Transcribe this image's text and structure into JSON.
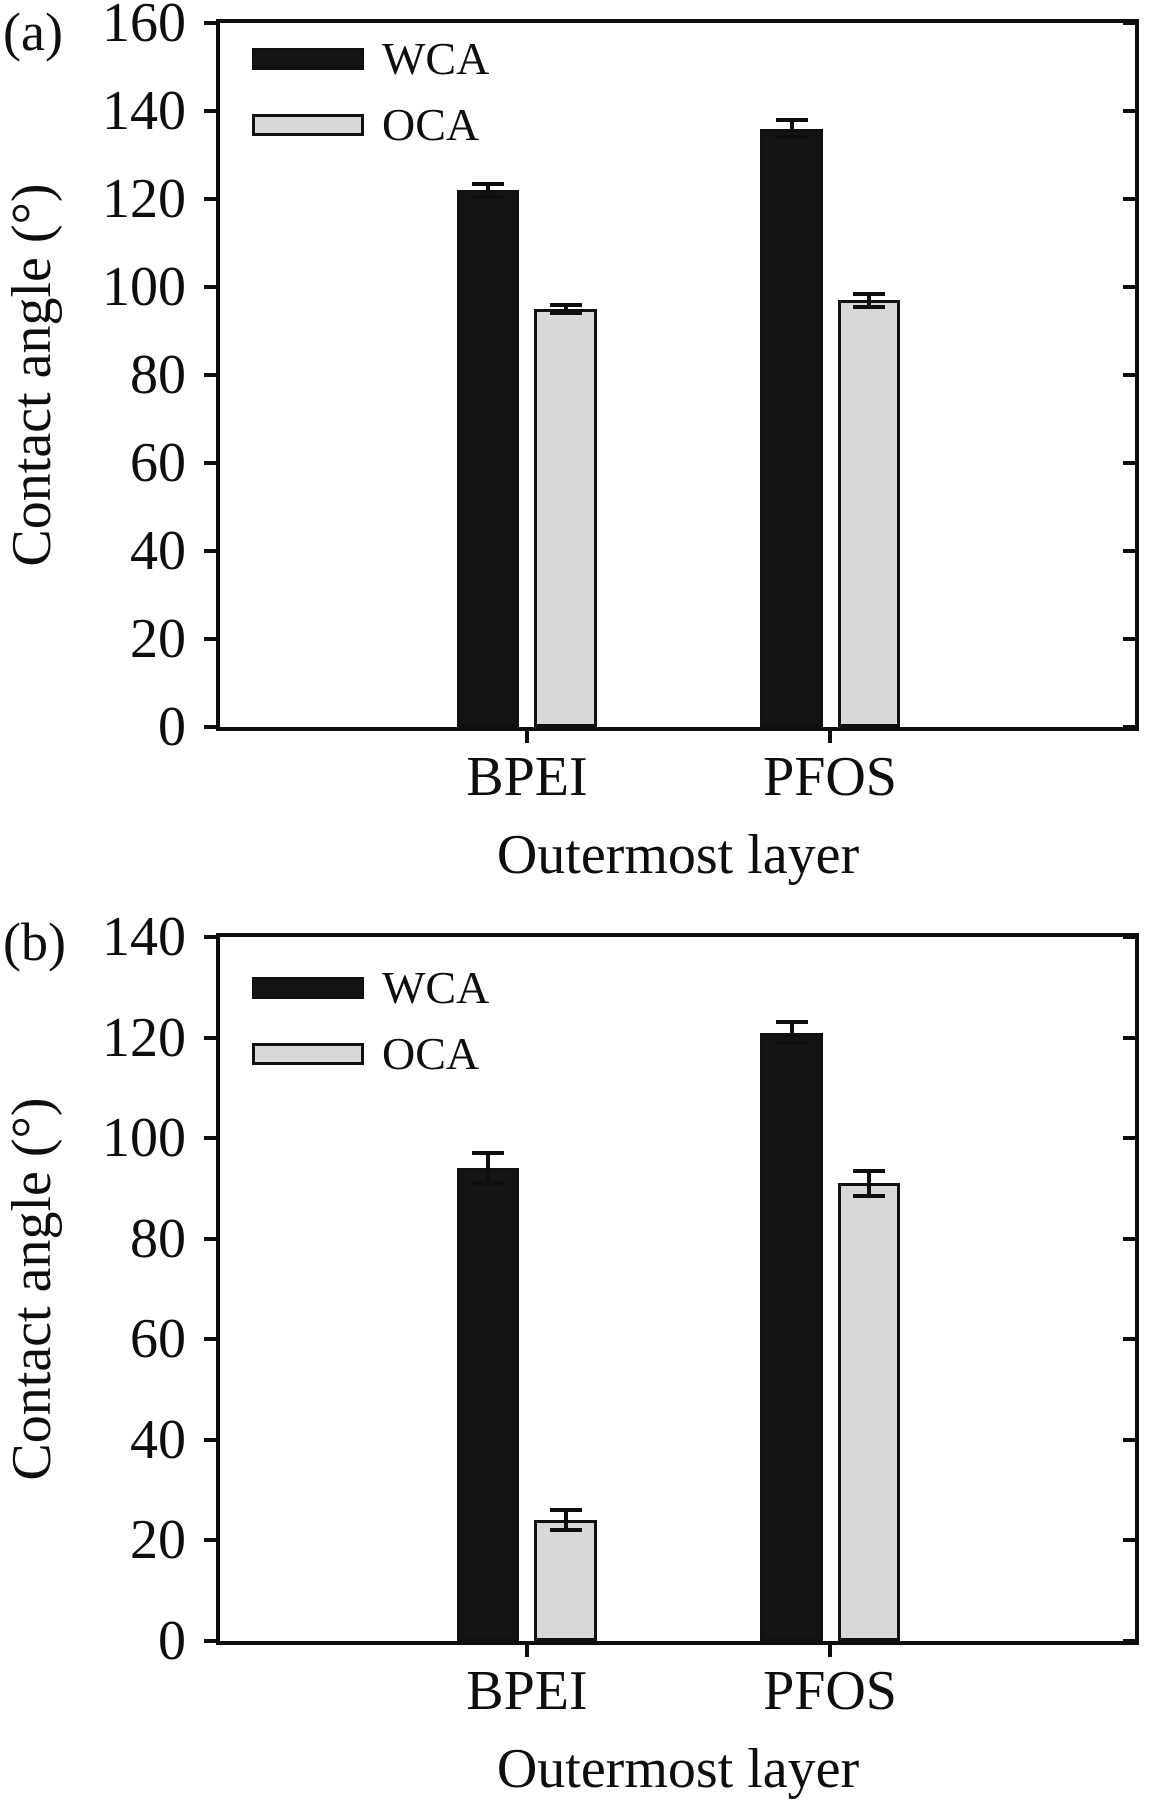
{
  "figure": {
    "background": "#ffffff",
    "frame_color": "#0e0e0e",
    "text_color": "#0e0e0e",
    "error_bar_color": "#0e0e0e"
  },
  "chart_data": [
    {
      "type": "bar",
      "panel_label": "(a)",
      "categories": [
        "BPEI",
        "PFOS"
      ],
      "series": [
        {
          "name": "WCA",
          "color": "#141414",
          "values": [
            122,
            136
          ],
          "errors": [
            1.5,
            2
          ]
        },
        {
          "name": "OCA",
          "color": "#d8d8d8",
          "values": [
            95,
            97
          ],
          "errors": [
            1,
            1.5
          ]
        }
      ],
      "xlabel": "Outermost layer",
      "ylabel": "Contact angle (°)",
      "ylim": [
        0,
        160
      ],
      "ytick_step": 20,
      "ytick_labels": [
        "0",
        "20",
        "40",
        "60",
        "80",
        "100",
        "120",
        "140",
        "160"
      ],
      "grid": false,
      "legend_position": "top-left-inside",
      "error_bars": true
    },
    {
      "type": "bar",
      "panel_label": "(b)",
      "categories": [
        "BPEI",
        "PFOS"
      ],
      "series": [
        {
          "name": "WCA",
          "color": "#141414",
          "values": [
            94,
            121
          ],
          "errors": [
            3,
            2
          ]
        },
        {
          "name": "OCA",
          "color": "#d8d8d8",
          "values": [
            24,
            91
          ],
          "errors": [
            2,
            2.5
          ]
        }
      ],
      "xlabel": "Outermost layer",
      "ylabel": "Contact angle (°)",
      "ylim": [
        0,
        140
      ],
      "ytick_step": 20,
      "ytick_labels": [
        "0",
        "20",
        "40",
        "60",
        "80",
        "100",
        "120",
        "140"
      ],
      "grid": false,
      "legend_position": "top-left-inside",
      "error_bars": true
    }
  ]
}
